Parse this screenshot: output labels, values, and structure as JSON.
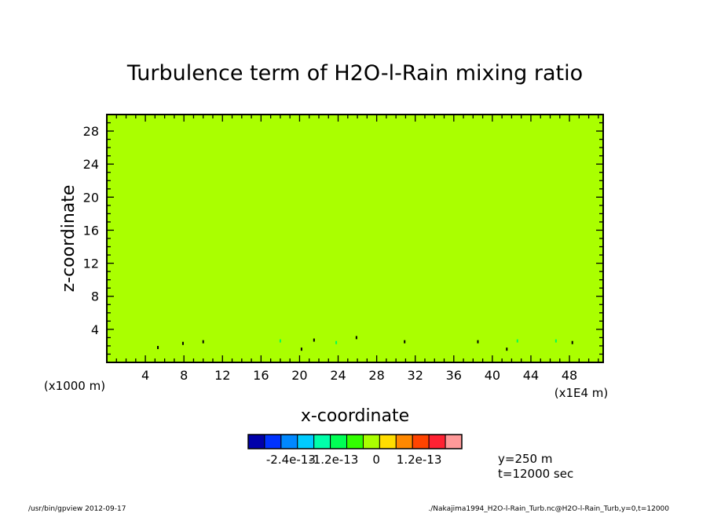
{
  "chart_data": {
    "type": "heatmap",
    "title": "Turbulence term of H2O-l-Rain mixing ratio",
    "xlabel": "x-coordinate",
    "ylabel": "z-coordinate",
    "x_unit_label": "(x1E4 m)",
    "y_unit_label": "(x1000 m)",
    "xlim": [
      0,
      51.5
    ],
    "ylim": [
      0,
      30
    ],
    "x_ticks": [
      "4",
      "8",
      "12",
      "16",
      "20",
      "24",
      "28",
      "32",
      "36",
      "40",
      "44",
      "48"
    ],
    "x_tick_values": [
      4,
      8,
      12,
      16,
      20,
      24,
      28,
      32,
      36,
      40,
      44,
      48
    ],
    "y_ticks": [
      "4",
      "8",
      "12",
      "16",
      "20",
      "24",
      "28"
    ],
    "y_tick_values": [
      4,
      8,
      12,
      16,
      20,
      24,
      28
    ],
    "field_value": 0,
    "field_color": "#aaff00",
    "colorbar": {
      "colors": [
        "#0000aa",
        "#0033ff",
        "#0088ff",
        "#00ccff",
        "#00ffaa",
        "#00ff55",
        "#33ff00",
        "#aaff00",
        "#ffdd00",
        "#ff8800",
        "#ff4400",
        "#ff2233",
        "#ff9999"
      ],
      "labels": [
        "-2.4e-13",
        "-1.2e-13",
        "0",
        "1.2e-13"
      ],
      "label_values": [
        -2.4e-13,
        -1.2e-13,
        0,
        1.2e-13
      ],
      "value_range": [
        -3.6e-13,
        2.4e-13
      ]
    },
    "speckles": [
      {
        "x": 5.3,
        "z": 1.8,
        "color": "#000000"
      },
      {
        "x": 7.9,
        "z": 2.3,
        "color": "#000000"
      },
      {
        "x": 10.0,
        "z": 2.5,
        "color": "#000000"
      },
      {
        "x": 18.0,
        "z": 2.6,
        "color": "#00ff55"
      },
      {
        "x": 20.2,
        "z": 1.6,
        "color": "#000000"
      },
      {
        "x": 21.5,
        "z": 2.7,
        "color": "#000000"
      },
      {
        "x": 23.8,
        "z": 2.4,
        "color": "#00ff55"
      },
      {
        "x": 25.9,
        "z": 3.0,
        "color": "#000000"
      },
      {
        "x": 30.9,
        "z": 2.5,
        "color": "#000000"
      },
      {
        "x": 38.5,
        "z": 2.5,
        "color": "#000000"
      },
      {
        "x": 41.5,
        "z": 1.6,
        "color": "#000000"
      },
      {
        "x": 42.6,
        "z": 2.6,
        "color": "#00ff55"
      },
      {
        "x": 46.6,
        "z": 2.6,
        "color": "#00ff55"
      },
      {
        "x": 48.3,
        "z": 2.4,
        "color": "#000000"
      }
    ]
  },
  "info": {
    "y_value": "y=250 m",
    "t_value": "t=12000 sec"
  },
  "footer": {
    "left": "/usr/bin/gpview  2012-09-17",
    "right": "./Nakajima1994_H2O-l-Rain_Turb.nc@H2O-l-Rain_Turb,y=0,t=12000"
  }
}
